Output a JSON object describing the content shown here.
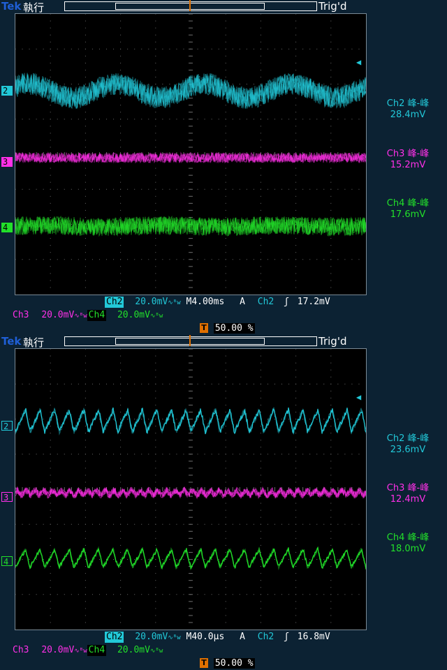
{
  "colors": {
    "ch2": "#22c8d8",
    "ch3": "#ff30e8",
    "ch4": "#22e02a",
    "accent": "#e07000",
    "tek": "#1f5fd6"
  },
  "screens": [
    {
      "brand": "Tek",
      "run_state": "執行",
      "trig_status": "Trig'd",
      "channels": [
        {
          "id": "2",
          "label": "2"
        },
        {
          "id": "3",
          "label": "3"
        },
        {
          "id": "4",
          "label": "4"
        }
      ],
      "measurements": [
        {
          "name": "Ch2 峰-峰",
          "value": "28.4mV"
        },
        {
          "name": "Ch3 峰-峰",
          "value": "15.2mV"
        },
        {
          "name": "Ch4 峰-峰",
          "value": "17.6mV"
        }
      ],
      "ch2_scale": {
        "ch": "Ch2",
        "value": "20.0mV"
      },
      "ch3_scale": {
        "ch": "Ch3",
        "value": "20.0mV"
      },
      "ch4_scale": {
        "ch": "Ch4",
        "value": "20.0mV"
      },
      "bw_icon": "bandwidth-limit-icon",
      "timebase": "M4.00ms",
      "trigger": {
        "mode": "A",
        "source": "Ch2",
        "slope_icon": "rising-edge-icon",
        "level": "17.2mV"
      },
      "trigger_position": "50.00 %"
    },
    {
      "brand": "Tek",
      "run_state": "執行",
      "trig_status": "Trig'd",
      "channels": [
        {
          "id": "2",
          "label": "2"
        },
        {
          "id": "3",
          "label": "3"
        },
        {
          "id": "4",
          "label": "4"
        }
      ],
      "measurements": [
        {
          "name": "Ch2 峰-峰",
          "value": "23.6mV"
        },
        {
          "name": "Ch3 峰-峰",
          "value": "12.4mV"
        },
        {
          "name": "Ch4 峰-峰",
          "value": "18.0mV"
        }
      ],
      "ch2_scale": {
        "ch": "Ch2",
        "value": "20.0mV"
      },
      "ch3_scale": {
        "ch": "Ch3",
        "value": "20.0mV"
      },
      "ch4_scale": {
        "ch": "Ch4",
        "value": "20.0mV"
      },
      "bw_icon": "bandwidth-limit-icon",
      "timebase": "M40.0µs",
      "trigger": {
        "mode": "A",
        "source": "Ch2",
        "slope_icon": "rising-edge-icon",
        "level": "16.8mV"
      },
      "trigger_position": "50.00 %"
    }
  ]
}
